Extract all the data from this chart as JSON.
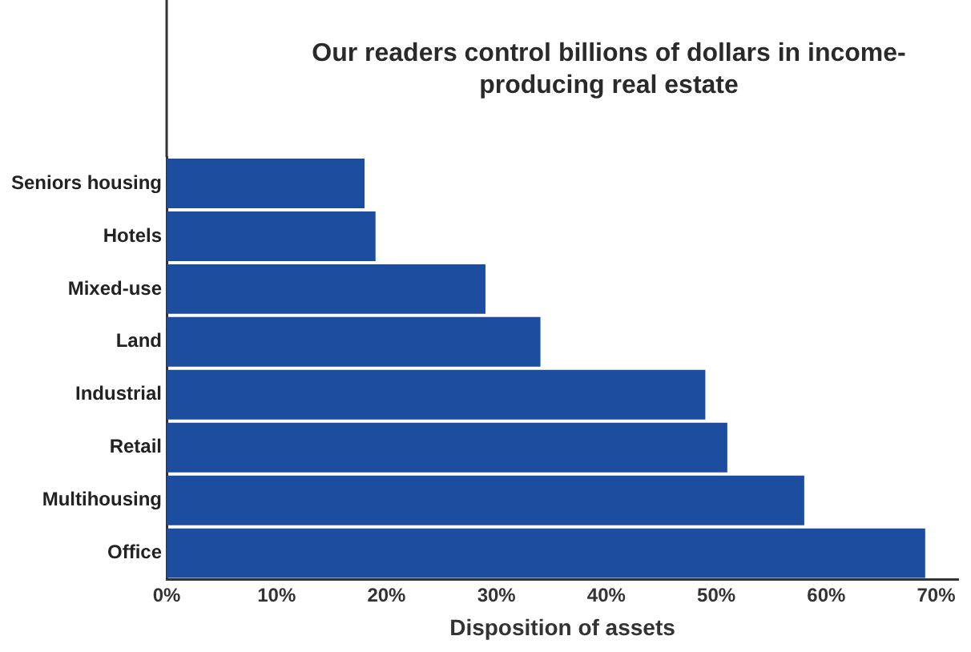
{
  "chart_data": {
    "type": "bar",
    "orientation": "horizontal",
    "title": "Our readers control billions of dollars in income-producing real estate",
    "xlabel": "Disposition of assets",
    "categories": [
      "Seniors housing",
      "Hotels",
      "Mixed-use",
      "Land",
      "Industrial",
      "Retail",
      "Multihousing",
      "Office"
    ],
    "values": [
      18,
      19,
      29,
      34,
      49,
      51,
      58,
      69
    ],
    "color": "#1d4d9e",
    "xlim": [
      0,
      72
    ],
    "xticks": [
      {
        "value": 0,
        "label": "0%"
      },
      {
        "value": 10,
        "label": "10%"
      },
      {
        "value": 20,
        "label": "20%"
      },
      {
        "value": 30,
        "label": "30%"
      },
      {
        "value": 40,
        "label": "40%"
      },
      {
        "value": 50,
        "label": "50%"
      },
      {
        "value": 60,
        "label": "60%"
      },
      {
        "value": 70,
        "label": "70%"
      }
    ],
    "grid": false,
    "legend": false
  }
}
